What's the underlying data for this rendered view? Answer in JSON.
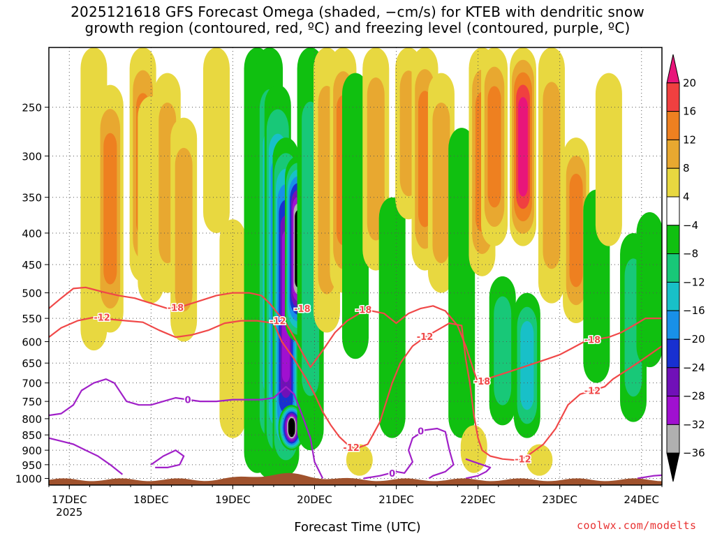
{
  "title": {
    "line1": "2025121618 GFS Forecast Omega (shaded, −cm/s) for KTEB with dendritic snow",
    "line2": "growth region (contoured, red, ºC) and freezing level (contoured, purple, ºC)"
  },
  "xlabel": "Forecast Time (UTC)",
  "credit": "coolwx.com/modelts",
  "chart_data": {
    "type": "heatmap",
    "title": "2025121618 GFS Forecast Omega (shaded, −cm/s) for KTEB with dendritic snow growth region (contoured, red, ºC) and freezing level (contoured, purple, ºC)",
    "xlabel": "Forecast Time (UTC)",
    "ylabel": "",
    "x_ticks": [
      "17DEC",
      "18DEC",
      "19DEC",
      "20DEC",
      "21DEC",
      "22DEC",
      "23DEC",
      "24DEC"
    ],
    "x_tick_days": [
      17,
      18,
      19,
      20,
      21,
      22,
      23,
      24
    ],
    "x_range_days": [
      16.75,
      24.25
    ],
    "year_label": "2025",
    "y_ticks": [
      250,
      300,
      350,
      400,
      450,
      500,
      550,
      600,
      650,
      700,
      750,
      800,
      850,
      900,
      950,
      1000
    ],
    "y_range_hpa": [
      200,
      1025
    ],
    "y_scale": "pressure",
    "grid": true,
    "colorbar": {
      "labels": [
        "20",
        "16",
        "12",
        "8",
        "4",
        "−4",
        "−8",
        "−12",
        "−16",
        "−20",
        "−24",
        "−28",
        "−32",
        "−36"
      ],
      "colors": [
        "#e8157a",
        "#f04040",
        "#ee8020",
        "#e8a830",
        "#e8d840",
        "#ffffff",
        "#10c010",
        "#18c878",
        "#18c0c8",
        "#1890e8",
        "#1830d0",
        "#7010b8",
        "#a010d0",
        "#b0b0b0",
        "#000000"
      ]
    },
    "shading_bands": [
      {
        "day": 17.3,
        "p_top": 200,
        "p_bot": 620,
        "omega": 6
      },
      {
        "day": 17.5,
        "p_top": 230,
        "p_bot": 580,
        "omega": 12
      },
      {
        "day": 17.9,
        "p_top": 200,
        "p_bot": 480,
        "omega": 14
      },
      {
        "day": 18.0,
        "p_top": 240,
        "p_bot": 520,
        "omega": 6
      },
      {
        "day": 18.2,
        "p_top": 220,
        "p_bot": 500,
        "omega": 8
      },
      {
        "day": 18.4,
        "p_top": 260,
        "p_bot": 600,
        "omega": 10
      },
      {
        "day": 18.8,
        "p_top": 200,
        "p_bot": 400,
        "omega": 6
      },
      {
        "day": 19.0,
        "p_top": 380,
        "p_bot": 860,
        "omega": 6
      },
      {
        "day": 19.3,
        "p_top": 200,
        "p_bot": 980,
        "omega": -7
      },
      {
        "day": 19.45,
        "p_top": 200,
        "p_bot": 1000,
        "omega": -13
      },
      {
        "day": 19.55,
        "p_top": 230,
        "p_bot": 990,
        "omega": -20
      },
      {
        "day": 19.65,
        "p_top": 280,
        "p_bot": 990,
        "omega": -28
      },
      {
        "day": 19.8,
        "p_top": 300,
        "p_bot": 600,
        "omega": -36
      },
      {
        "day": 19.72,
        "p_top": 760,
        "p_bot": 900,
        "omega": -36
      },
      {
        "day": 19.95,
        "p_top": 200,
        "p_bot": 900,
        "omega": -10
      },
      {
        "day": 20.15,
        "p_top": 200,
        "p_bot": 580,
        "omega": 10
      },
      {
        "day": 20.35,
        "p_top": 200,
        "p_bot": 500,
        "omega": 14
      },
      {
        "day": 20.5,
        "p_top": 220,
        "p_bot": 640,
        "omega": -7
      },
      {
        "day": 20.55,
        "p_top": 880,
        "p_bot": 990,
        "omega": 6
      },
      {
        "day": 20.75,
        "p_top": 200,
        "p_bot": 460,
        "omega": 10
      },
      {
        "day": 20.95,
        "p_top": 350,
        "p_bot": 860,
        "omega": -7
      },
      {
        "day": 21.15,
        "p_top": 200,
        "p_bot": 380,
        "omega": 8
      },
      {
        "day": 21.35,
        "p_top": 200,
        "p_bot": 460,
        "omega": 12
      },
      {
        "day": 21.55,
        "p_top": 220,
        "p_bot": 500,
        "omega": 8
      },
      {
        "day": 21.8,
        "p_top": 270,
        "p_bot": 860,
        "omega": -7
      },
      {
        "day": 21.95,
        "p_top": 820,
        "p_bot": 980,
        "omega": 6
      },
      {
        "day": 22.05,
        "p_top": 200,
        "p_bot": 470,
        "omega": 12
      },
      {
        "day": 22.2,
        "p_top": 200,
        "p_bot": 420,
        "omega": 14
      },
      {
        "day": 22.3,
        "p_top": 470,
        "p_bot": 820,
        "omega": -8
      },
      {
        "day": 22.55,
        "p_top": 200,
        "p_bot": 420,
        "omega": 20
      },
      {
        "day": 22.6,
        "p_top": 500,
        "p_bot": 860,
        "omega": -14
      },
      {
        "day": 22.75,
        "p_top": 880,
        "p_bot": 990,
        "omega": 6
      },
      {
        "day": 22.9,
        "p_top": 200,
        "p_bot": 520,
        "omega": 8
      },
      {
        "day": 23.2,
        "p_top": 280,
        "p_bot": 560,
        "omega": 12
      },
      {
        "day": 23.45,
        "p_top": 340,
        "p_bot": 700,
        "omega": -7
      },
      {
        "day": 23.6,
        "p_top": 220,
        "p_bot": 420,
        "omega": 6
      },
      {
        "day": 23.9,
        "p_top": 400,
        "p_bot": 810,
        "omega": -10
      },
      {
        "day": 24.1,
        "p_top": 370,
        "p_bot": 660,
        "omega": -7
      }
    ],
    "series": [
      {
        "name": "-12",
        "color": "#f04848",
        "points": [
          [
            16.75,
            590
          ],
          [
            16.9,
            570
          ],
          [
            17.1,
            555
          ],
          [
            17.3,
            548
          ],
          [
            17.5,
            552
          ],
          [
            17.7,
            555
          ],
          [
            17.9,
            558
          ],
          [
            18.1,
            575
          ],
          [
            18.3,
            590
          ],
          [
            18.5,
            585
          ],
          [
            18.7,
            575
          ],
          [
            18.9,
            560
          ],
          [
            19.1,
            555
          ],
          [
            19.3,
            555
          ],
          [
            19.5,
            560
          ],
          [
            19.6,
            600
          ],
          [
            19.75,
            640
          ],
          [
            19.9,
            690
          ],
          [
            20.0,
            730
          ],
          [
            20.1,
            780
          ],
          [
            20.2,
            820
          ],
          [
            20.3,
            855
          ],
          [
            20.4,
            880
          ],
          [
            20.5,
            895
          ],
          [
            20.65,
            880
          ],
          [
            20.8,
            810
          ],
          [
            20.95,
            700
          ],
          [
            21.05,
            650
          ],
          [
            21.2,
            610
          ],
          [
            21.35,
            590
          ],
          [
            21.5,
            575
          ],
          [
            21.65,
            560
          ],
          [
            21.8,
            565
          ],
          [
            21.85,
            640
          ],
          [
            21.9,
            700
          ],
          [
            21.95,
            790
          ],
          [
            22.0,
            860
          ],
          [
            22.05,
            900
          ],
          [
            22.15,
            920
          ],
          [
            22.3,
            930
          ],
          [
            22.5,
            935
          ],
          [
            22.6,
            920
          ],
          [
            22.7,
            900
          ],
          [
            22.8,
            880
          ],
          [
            22.95,
            830
          ],
          [
            23.1,
            760
          ],
          [
            23.25,
            730
          ],
          [
            23.4,
            720
          ],
          [
            23.55,
            710
          ],
          [
            23.65,
            690
          ],
          [
            23.8,
            670
          ],
          [
            23.95,
            650
          ],
          [
            24.1,
            630
          ],
          [
            24.25,
            610
          ]
        ]
      },
      {
        "name": "-18",
        "color": "#f04848",
        "points": [
          [
            16.75,
            530
          ],
          [
            16.9,
            510
          ],
          [
            17.05,
            492
          ],
          [
            17.2,
            490
          ],
          [
            17.4,
            498
          ],
          [
            17.6,
            505
          ],
          [
            17.8,
            510
          ],
          [
            18.0,
            520
          ],
          [
            18.2,
            530
          ],
          [
            18.4,
            525
          ],
          [
            18.6,
            515
          ],
          [
            18.8,
            505
          ],
          [
            19.0,
            500
          ],
          [
            19.2,
            500
          ],
          [
            19.35,
            505
          ],
          [
            19.45,
            520
          ],
          [
            19.55,
            540
          ],
          [
            19.65,
            560
          ],
          [
            19.75,
            590
          ],
          [
            19.85,
            625
          ],
          [
            19.95,
            660
          ],
          [
            20.1,
            620
          ],
          [
            20.25,
            580
          ],
          [
            20.4,
            555
          ],
          [
            20.55,
            540
          ],
          [
            20.7,
            535
          ],
          [
            20.85,
            540
          ],
          [
            21.0,
            560
          ],
          [
            21.15,
            540
          ],
          [
            21.3,
            530
          ],
          [
            21.45,
            525
          ],
          [
            21.6,
            535
          ],
          [
            21.75,
            565
          ],
          [
            21.85,
            610
          ],
          [
            21.95,
            670
          ],
          [
            22.0,
            700
          ],
          [
            22.1,
            690
          ],
          [
            22.25,
            680
          ],
          [
            22.4,
            670
          ],
          [
            22.55,
            660
          ],
          [
            22.7,
            650
          ],
          [
            22.85,
            640
          ],
          [
            23.0,
            630
          ],
          [
            23.15,
            615
          ],
          [
            23.3,
            600
          ],
          [
            23.45,
            595
          ],
          [
            23.6,
            590
          ],
          [
            23.75,
            580
          ],
          [
            23.9,
            565
          ],
          [
            24.05,
            550
          ],
          [
            24.25,
            550
          ]
        ]
      },
      {
        "name": "0",
        "color": "#a020c8",
        "points": [
          [
            16.75,
            790
          ],
          [
            16.9,
            785
          ],
          [
            17.05,
            760
          ],
          [
            17.15,
            720
          ],
          [
            17.3,
            700
          ],
          [
            17.45,
            690
          ],
          [
            17.55,
            700
          ],
          [
            17.7,
            750
          ],
          [
            17.85,
            760
          ],
          [
            18.0,
            760
          ],
          [
            18.15,
            750
          ],
          [
            18.3,
            740
          ],
          [
            18.45,
            745
          ],
          [
            18.6,
            750
          ],
          [
            18.8,
            750
          ],
          [
            19.0,
            745
          ],
          [
            19.2,
            745
          ],
          [
            19.35,
            745
          ],
          [
            19.5,
            740
          ],
          [
            19.6,
            720
          ],
          [
            19.65,
            710
          ],
          [
            19.75,
            730
          ],
          [
            19.85,
            790
          ],
          [
            19.95,
            860
          ],
          [
            20.0,
            940
          ],
          [
            20.1,
            1000
          ]
        ]
      },
      {
        "name": "0",
        "color": "#a020c8",
        "points": [
          [
            16.75,
            860
          ],
          [
            16.9,
            870
          ],
          [
            17.05,
            880
          ],
          [
            17.2,
            900
          ],
          [
            17.35,
            920
          ],
          [
            17.5,
            950
          ],
          [
            17.65,
            985
          ]
        ]
      },
      {
        "name": "0",
        "color": "#a020c8",
        "points": [
          [
            20.6,
            1000
          ],
          [
            20.8,
            990
          ],
          [
            21.0,
            975
          ],
          [
            21.1,
            980
          ],
          [
            21.2,
            940
          ],
          [
            21.15,
            900
          ],
          [
            21.2,
            860
          ],
          [
            21.35,
            835
          ],
          [
            21.5,
            830
          ],
          [
            21.6,
            840
          ],
          [
            21.65,
            900
          ],
          [
            21.7,
            950
          ],
          [
            21.6,
            975
          ],
          [
            21.45,
            990
          ],
          [
            21.4,
            1000
          ]
        ]
      },
      {
        "name": "0",
        "color": "#a020c8",
        "points": [
          [
            21.85,
            1000
          ],
          [
            22.0,
            990
          ],
          [
            22.1,
            975
          ],
          [
            22.15,
            960
          ],
          [
            22.05,
            950
          ],
          [
            21.95,
            940
          ],
          [
            21.85,
            930
          ]
        ]
      },
      {
        "name": "0",
        "color": "#a020c8",
        "points": [
          [
            18.0,
            950
          ],
          [
            18.15,
            920
          ],
          [
            18.3,
            900
          ],
          [
            18.4,
            920
          ],
          [
            18.35,
            950
          ],
          [
            18.2,
            960
          ],
          [
            18.05,
            960
          ]
        ]
      },
      {
        "name": "0",
        "color": "#a020c8",
        "points": [
          [
            23.95,
            1000
          ],
          [
            24.05,
            995
          ],
          [
            24.15,
            990
          ],
          [
            24.25,
            988
          ]
        ]
      }
    ],
    "contour_labels": [
      {
        "text": "-12",
        "day": 17.4,
        "p": 548,
        "color": "#f04848"
      },
      {
        "text": "-18",
        "day": 18.3,
        "p": 528,
        "color": "#f04848"
      },
      {
        "text": "-12",
        "day": 19.55,
        "p": 555,
        "color": "#f04848"
      },
      {
        "text": "-18",
        "day": 19.85,
        "p": 530,
        "color": "#f04848"
      },
      {
        "text": "-18",
        "day": 20.6,
        "p": 532,
        "color": "#f04848"
      },
      {
        "text": "-12",
        "day": 21.35,
        "p": 588,
        "color": "#f04848"
      },
      {
        "text": "-12",
        "day": 20.45,
        "p": 890,
        "color": "#f04848"
      },
      {
        "text": "-18",
        "day": 22.05,
        "p": 695,
        "color": "#f04848"
      },
      {
        "text": "-12",
        "day": 22.55,
        "p": 930,
        "color": "#f04848"
      },
      {
        "text": "-12",
        "day": 23.4,
        "p": 720,
        "color": "#f04848"
      },
      {
        "text": "-18",
        "day": 23.4,
        "p": 595,
        "color": "#f04848"
      },
      {
        "text": "0",
        "day": 18.45,
        "p": 745,
        "color": "#a020c8"
      },
      {
        "text": "0",
        "day": 21.3,
        "p": 838,
        "color": "#a020c8"
      },
      {
        "text": "0",
        "day": 20.95,
        "p": 980,
        "color": "#a020c8"
      }
    ],
    "terrain": {
      "color": "#a0522d",
      "surface_hpa": 1005
    }
  }
}
